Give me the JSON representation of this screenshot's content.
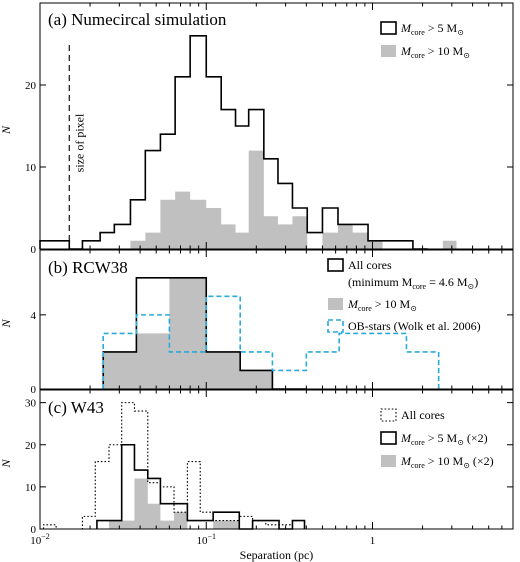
{
  "chart_data": [
    {
      "type": "histogram",
      "label": "(a) Numecircal simulation",
      "annotation": "size of pixel",
      "annotation_x": 0.015,
      "xlabel": "",
      "ylabel": "N",
      "ylim": [
        0,
        30
      ],
      "yticks": [
        0,
        10,
        20
      ],
      "xscale": "log",
      "xlim": [
        0.01,
        7
      ],
      "legend_position": "top-right",
      "legend": [
        {
          "prefix": "M",
          "sub": "core",
          "relation": " > 5 M",
          "sun_sub": "⊙",
          "suffix": "",
          "style": "outline"
        },
        {
          "prefix": "M",
          "sub": "core",
          "relation": " > 10 M",
          "sun_sub": "⊙",
          "suffix": "",
          "style": "filled"
        }
      ],
      "series": [
        {
          "name": "M_core > 5 M_sun",
          "style": "outline",
          "edges": [
            0.01,
            0.015,
            0.018,
            0.023,
            0.028,
            0.035,
            0.043,
            0.053,
            0.065,
            0.08,
            0.1,
            0.123,
            0.15,
            0.18,
            0.222,
            0.27,
            0.33,
            0.405,
            0.5,
            0.62,
            0.76,
            0.94,
            1.15,
            1.42,
            1.75,
            2.15
          ],
          "values": [
            1,
            0,
            1,
            2,
            3,
            6,
            12,
            14,
            21,
            26,
            21,
            17,
            15,
            17,
            11,
            8,
            5,
            2,
            5,
            3,
            3,
            1,
            1,
            1,
            0
          ]
        },
        {
          "name": "M_core > 10 M_sun",
          "style": "filled",
          "edges": [
            0.035,
            0.043,
            0.053,
            0.065,
            0.08,
            0.1,
            0.123,
            0.15,
            0.18,
            0.222,
            0.27,
            0.33,
            0.405,
            0.5,
            0.62,
            0.76,
            0.94,
            1.15,
            1.42,
            1.75,
            2.15,
            2.65,
            3.2,
            3.9
          ],
          "values": [
            1,
            2,
            6,
            7,
            6,
            5,
            3,
            2,
            12,
            4,
            3,
            4,
            0,
            2,
            3,
            2,
            1,
            0,
            0,
            0,
            0,
            1,
            0
          ]
        }
      ]
    },
    {
      "type": "histogram",
      "label": "(b) RCW38",
      "xlabel": "",
      "ylabel": "N",
      "ylim": [
        0,
        7.5
      ],
      "yticks": [
        0,
        4
      ],
      "xscale": "log",
      "xlim": [
        0.01,
        7
      ],
      "legend_position": "top-right",
      "legend": [
        {
          "line1": "All cores",
          "line2_prefix": "(minimum M",
          "line2_sub": "core",
          "line2_rel": " = 4.6 M",
          "line2_sun": "⊙",
          "line2_suffix": ")",
          "style": "outline"
        },
        {
          "prefix": "M",
          "sub": "core",
          "relation": " > 10 M",
          "sun_sub": "⊙",
          "style": "filled"
        },
        {
          "text": "OB-stars (Wolk et al. 2006)",
          "style": "dashed"
        }
      ],
      "series": [
        {
          "name": "All cores",
          "style": "outline",
          "edges": [
            0.024,
            0.038,
            0.06,
            0.1,
            0.16,
            0.25,
            0.4
          ],
          "values": [
            2,
            6,
            6,
            2,
            1,
            0
          ]
        },
        {
          "name": "M_core > 10 M_sun",
          "style": "filled",
          "edges": [
            0.024,
            0.038,
            0.06,
            0.1,
            0.16,
            0.25
          ],
          "values": [
            2,
            3,
            6,
            2,
            1
          ]
        },
        {
          "name": "OB-stars (Wolk et al. 2006)",
          "style": "dashed",
          "edges": [
            0.024,
            0.038,
            0.06,
            0.1,
            0.16,
            0.25,
            0.4,
            0.63,
            1.0,
            1.6,
            2.5
          ],
          "values": [
            3,
            4,
            2,
            5,
            2,
            1,
            2,
            3,
            3,
            2
          ]
        }
      ]
    },
    {
      "type": "histogram",
      "label": "(c) W43",
      "xlabel": "Separation (pc)",
      "ylabel": "N",
      "ylim": [
        0,
        33
      ],
      "yticks": [
        0,
        10,
        20,
        30
      ],
      "xscale": "log",
      "xlim": [
        0.01,
        7
      ],
      "xticks": [
        0.01,
        0.1,
        1
      ],
      "xtick_labels": [
        "10",
        "10",
        "1"
      ],
      "xtick_exponents": [
        "−2",
        "−1",
        ""
      ],
      "legend_position": "top-right",
      "legend": [
        {
          "text": "All cores",
          "style": "dotted"
        },
        {
          "prefix": "M",
          "sub": "core",
          "relation": " > 5 M",
          "sun_sub": "⊙",
          "suffix": " (×2)",
          "style": "outline"
        },
        {
          "prefix": "M",
          "sub": "core",
          "relation": " > 10 M",
          "sun_sub": "⊙",
          "suffix": " (×2)",
          "style": "filled"
        }
      ],
      "series": [
        {
          "name": "All cores",
          "style": "dotted",
          "edges": [
            0.0105,
            0.0125,
            0.015,
            0.018,
            0.0215,
            0.026,
            0.031,
            0.037,
            0.0445,
            0.053,
            0.064,
            0.077,
            0.092,
            0.11,
            0.132,
            0.158,
            0.19,
            0.228,
            0.274,
            0.33,
            0.39
          ],
          "values": [
            1,
            0,
            0,
            3,
            16,
            20,
            30,
            28,
            11,
            10,
            4,
            16,
            4,
            2,
            2,
            3,
            2,
            1,
            1,
            0
          ]
        },
        {
          "name": "M_core > 5 M_sun (×2)",
          "style": "outline",
          "edges": [
            0.022,
            0.026,
            0.031,
            0.037,
            0.0445,
            0.053,
            0.064,
            0.077,
            0.092,
            0.11,
            0.132,
            0.158,
            0.19,
            0.228,
            0.274,
            0.33,
            0.39
          ],
          "values": [
            2,
            2,
            20,
            14,
            12,
            6,
            6,
            2,
            2,
            4,
            4,
            0,
            2,
            2,
            0,
            2
          ]
        },
        {
          "name": "M_core > 10 M_sun (×2)",
          "style": "filled",
          "edges": [
            0.026,
            0.031,
            0.037,
            0.0445,
            0.053,
            0.064,
            0.077,
            0.092,
            0.11,
            0.132,
            0.158
          ],
          "values": [
            2,
            2,
            12,
            6,
            2,
            4,
            0,
            0,
            2,
            2
          ]
        }
      ]
    }
  ]
}
